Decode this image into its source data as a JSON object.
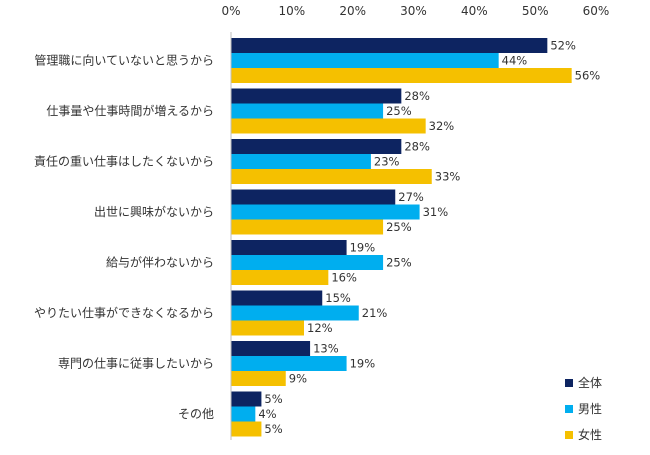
{
  "chart_data": {
    "type": "bar",
    "orientation": "horizontal",
    "x_ticks": [
      "0%",
      "10%",
      "20%",
      "30%",
      "40%",
      "50%",
      "60%"
    ],
    "xlim": [
      0,
      60
    ],
    "value_suffix": "%",
    "grid": false,
    "legend_position": "bottom-right",
    "categories": [
      "管理職に向いていないと思うから",
      "仕事量や仕事時間が増えるから",
      "責任の重い仕事はしたくないから",
      "出世に興味がないから",
      "給与が伴わないから",
      "やりたい仕事ができなくなるから",
      "専門の仕事に従事したいから",
      "その他"
    ],
    "series": [
      {
        "name": "全体",
        "color": "#0d2461",
        "values": [
          52,
          28,
          28,
          27,
          19,
          15,
          13,
          5
        ]
      },
      {
        "name": "男性",
        "color": "#00aeef",
        "values": [
          44,
          25,
          23,
          31,
          25,
          21,
          19,
          4
        ]
      },
      {
        "name": "女性",
        "color": "#f5c000",
        "values": [
          56,
          32,
          33,
          25,
          16,
          12,
          9,
          5
        ]
      }
    ]
  }
}
